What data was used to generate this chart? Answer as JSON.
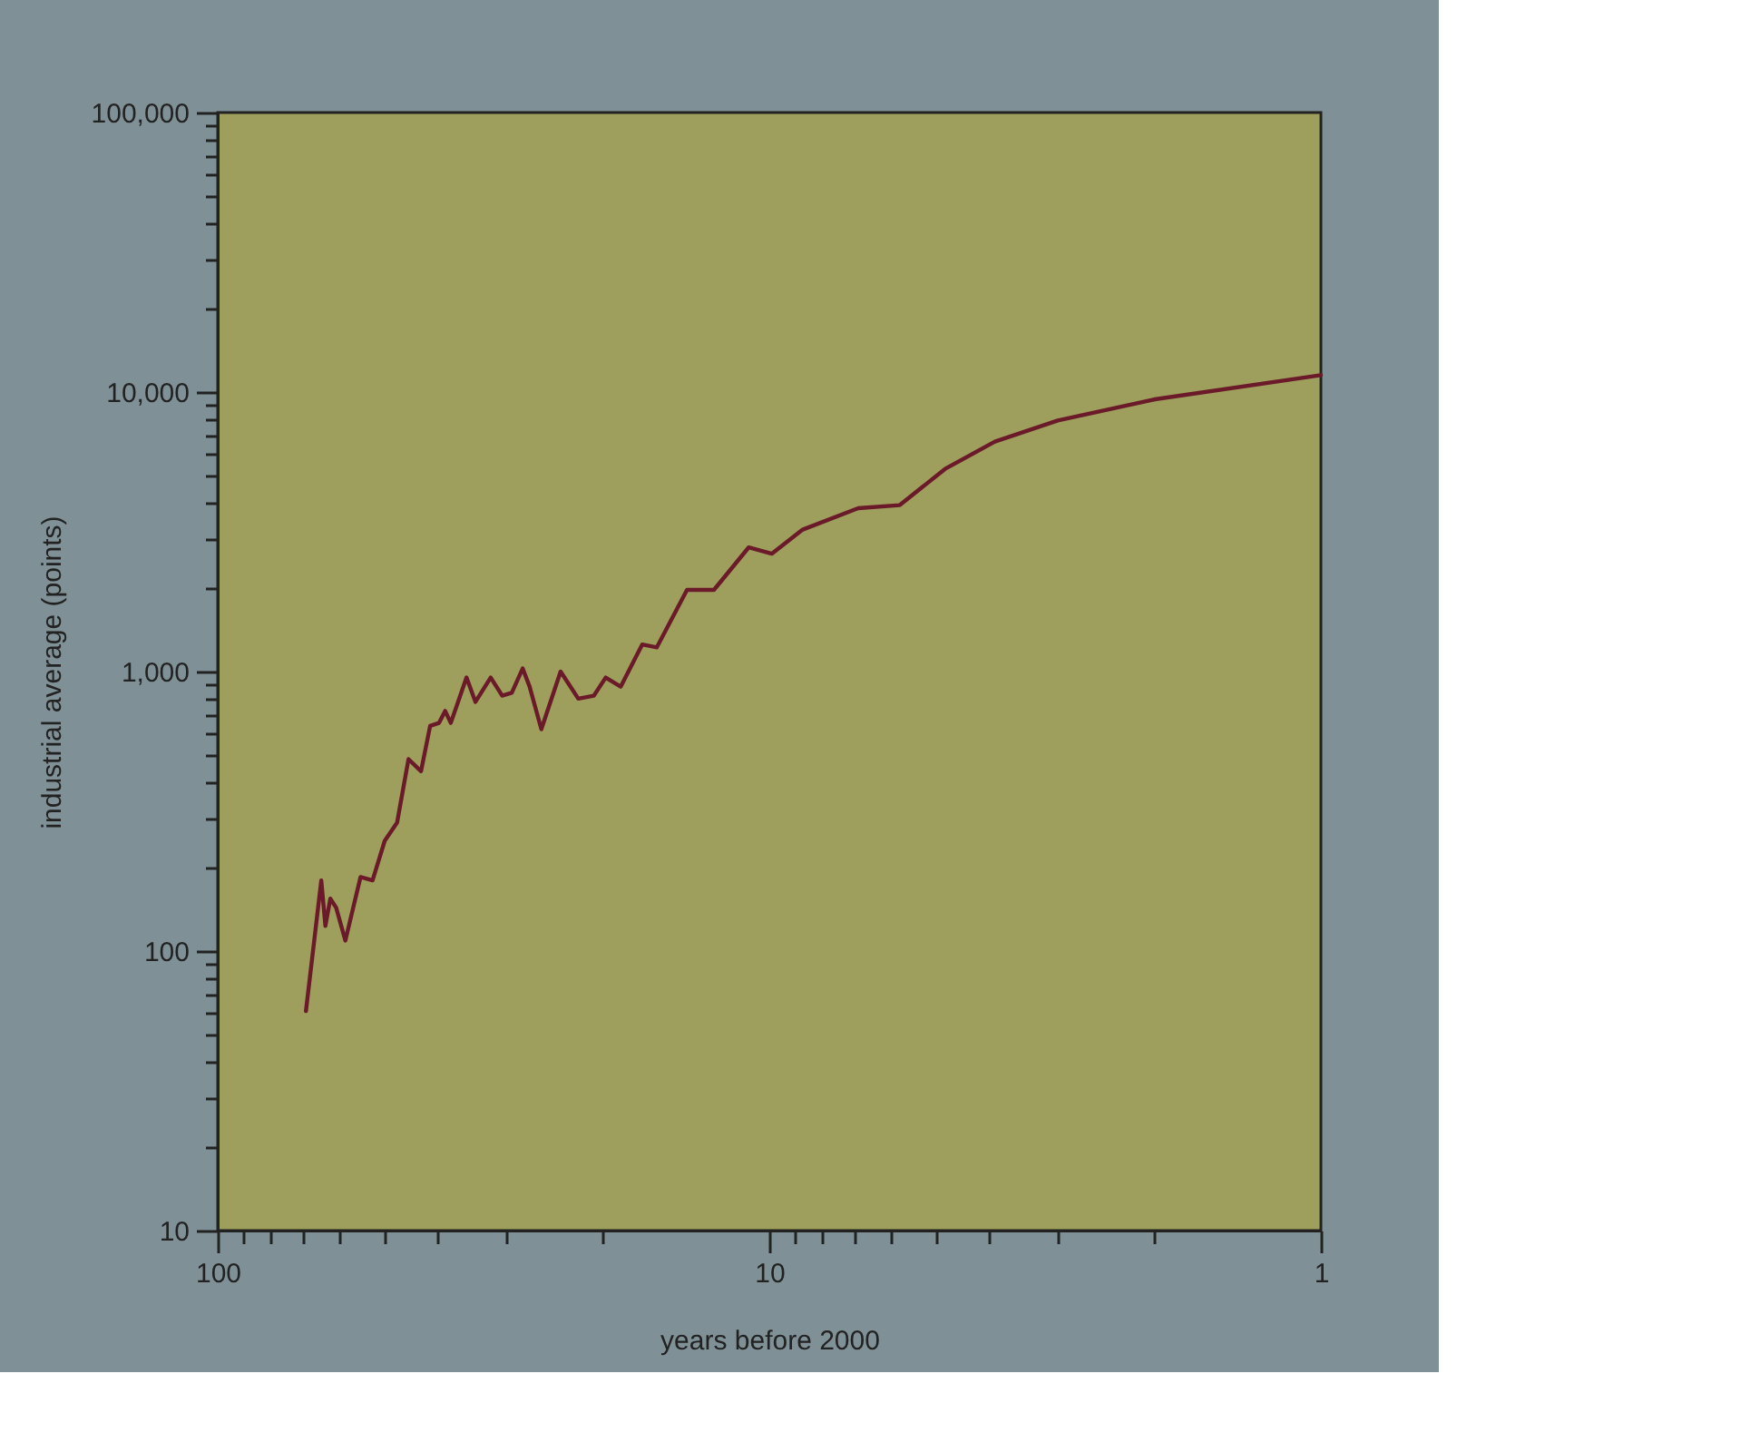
{
  "chart_data": {
    "type": "line",
    "xlabel": "years before 2000",
    "ylabel": "industrial average (points)",
    "log": "xy",
    "grid": false,
    "marker": "none",
    "line_style": "solid",
    "xlim": [
      100,
      1
    ],
    "ylim": [
      10,
      100000
    ],
    "xticks": [
      {
        "value": 100,
        "label": "100"
      },
      {
        "value": 90,
        "label": null
      },
      {
        "value": 80,
        "label": null
      },
      {
        "value": 70,
        "label": null
      },
      {
        "value": 60,
        "label": null
      },
      {
        "value": 50,
        "label": null
      },
      {
        "value": 40,
        "label": null
      },
      {
        "value": 30,
        "label": null
      },
      {
        "value": 20,
        "label": null
      },
      {
        "value": 10,
        "label": "10"
      },
      {
        "value": 9,
        "label": null
      },
      {
        "value": 8,
        "label": null
      },
      {
        "value": 7,
        "label": null
      },
      {
        "value": 6,
        "label": null
      },
      {
        "value": 5,
        "label": null
      },
      {
        "value": 4,
        "label": null
      },
      {
        "value": 3,
        "label": null
      },
      {
        "value": 2,
        "label": null
      },
      {
        "value": 1,
        "label": "1"
      }
    ],
    "yticks": [
      {
        "value": 10,
        "label": "10"
      },
      {
        "value": 20,
        "label": null
      },
      {
        "value": 30,
        "label": null
      },
      {
        "value": 40,
        "label": null
      },
      {
        "value": 50,
        "label": null
      },
      {
        "value": 60,
        "label": null
      },
      {
        "value": 70,
        "label": null
      },
      {
        "value": 80,
        "label": null
      },
      {
        "value": 90,
        "label": null
      },
      {
        "value": 100,
        "label": "100"
      },
      {
        "value": 200,
        "label": null
      },
      {
        "value": 300,
        "label": null
      },
      {
        "value": 400,
        "label": null
      },
      {
        "value": 500,
        "label": null
      },
      {
        "value": 600,
        "label": null
      },
      {
        "value": 700,
        "label": null
      },
      {
        "value": 800,
        "label": null
      },
      {
        "value": 900,
        "label": null
      },
      {
        "value": 1000,
        "label": "1,000"
      },
      {
        "value": 2000,
        "label": null
      },
      {
        "value": 3000,
        "label": null
      },
      {
        "value": 4000,
        "label": null
      },
      {
        "value": 5000,
        "label": null
      },
      {
        "value": 6000,
        "label": null
      },
      {
        "value": 7000,
        "label": null
      },
      {
        "value": 8000,
        "label": null
      },
      {
        "value": 9000,
        "label": null
      },
      {
        "value": 10000,
        "label": "10,000"
      },
      {
        "value": 20000,
        "label": null
      },
      {
        "value": 30000,
        "label": null
      },
      {
        "value": 40000,
        "label": null
      },
      {
        "value": 50000,
        "label": null
      },
      {
        "value": 60000,
        "label": null
      },
      {
        "value": 70000,
        "label": null
      },
      {
        "value": 80000,
        "label": null
      },
      {
        "value": 90000,
        "label": null
      },
      {
        "value": 100000,
        "label": "100,000"
      }
    ],
    "series": [
      {
        "color": "#6b1a2a",
        "x": [
          69.2,
          64.9,
          63.8,
          62.5,
          61.0,
          58.7,
          55.1,
          52.4,
          49.8,
          47.3,
          45.1,
          42.8,
          41.2,
          39.7,
          38.7,
          37.8,
          35.4,
          34.1,
          32.0,
          30.5,
          29.3,
          28.0,
          27.2,
          25.9,
          23.9,
          22.2,
          20.8,
          19.8,
          18.6,
          17.0,
          16.0,
          14.1,
          12.6,
          10.9,
          9.9,
          8.7,
          6.9,
          5.8,
          4.8,
          3.9,
          3.0,
          2.0,
          1.0
        ],
        "values": [
          61,
          179,
          123,
          154,
          143,
          109,
          184,
          179,
          248,
          288,
          486,
          440,
          639,
          655,
          723,
          655,
          952,
          779,
          952,
          820,
          840,
          1026,
          883,
          622,
          1000,
          800,
          820,
          952,
          883,
          1250,
          1220,
          1960,
          1960,
          2780,
          2640,
          3220,
          3840,
          3940,
          5310,
          6650,
          7910,
          9420,
          11500
        ]
      }
    ]
  }
}
